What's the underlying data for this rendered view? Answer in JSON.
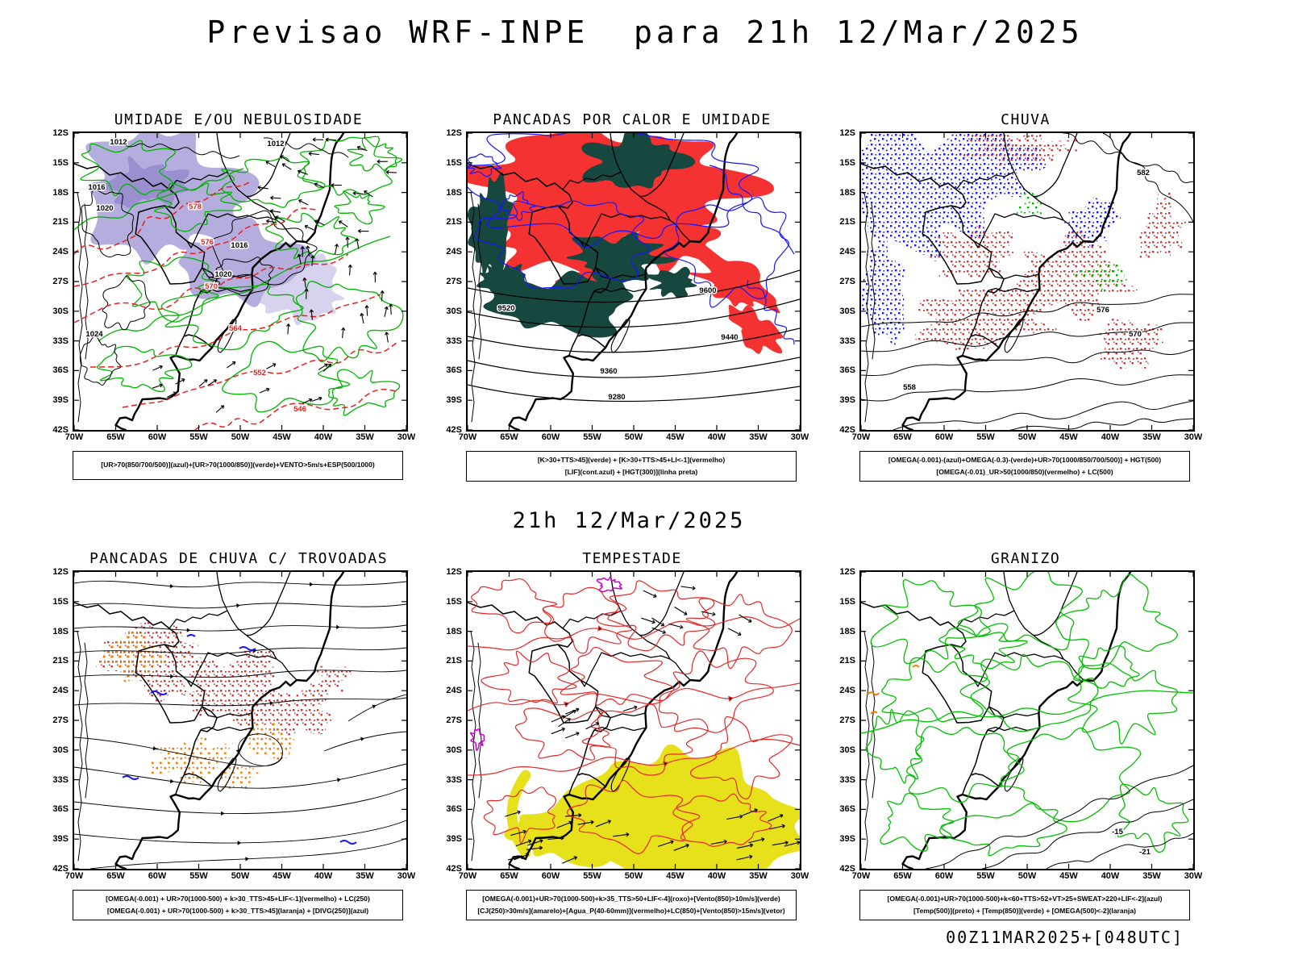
{
  "page": {
    "title": "Previsao WRF-INPE  para 21h 12/Mar/2025",
    "middle_label": "21h 12/Mar/2025",
    "bottom_label": "00Z11MAR2025+[048UTC]"
  },
  "axes": {
    "lat_ticks": [
      "12S",
      "15S",
      "18S",
      "21S",
      "24S",
      "27S",
      "30S",
      "33S",
      "36S",
      "39S",
      "42S"
    ],
    "lon_ticks": [
      "70W",
      "65W",
      "60W",
      "55W",
      "50W",
      "45W",
      "40W",
      "35W",
      "30W"
    ]
  },
  "colors": {
    "shading_purple": "#b6addf",
    "shading_purple_dark": "#9a90d0",
    "contour_green": "#00b400",
    "contour_red": "#e82020",
    "fill_red": "#f53232",
    "fill_teal": "#17483f",
    "contour_blue": "#1616ff",
    "speckle_orange": "#f08000",
    "fill_yellow": "#e7e11c",
    "contour_magenta": "#cc00cc",
    "map_line": "#000000"
  },
  "panels": [
    {
      "id": "umidade",
      "title": "UMIDADE E/OU NEBULOSIDADE",
      "legend_lines": [
        "[UR>70(850/700/500)](azul)+[UR>70(1000/850)](verde)+VENTO>5m/s+ESP(500/1000)"
      ],
      "map_labels": [
        "1012",
        "1012",
        "1016",
        "1020",
        "1016",
        "1020",
        "1024",
        "578",
        "576",
        "570",
        "564",
        "552",
        "546"
      ]
    },
    {
      "id": "pancadas-calor",
      "title": "PANCADAS POR CALOR E UMIDADE",
      "legend_lines": [
        "[K>30+TTS>45](verde) + [K>30+TTS>45+LI<-1](vermelho)",
        "[LIF](cont.azul) + [HGT(300)](linha preta)"
      ],
      "map_labels": [
        "9600",
        "9520",
        "9440",
        "9360",
        "9280"
      ]
    },
    {
      "id": "chuva",
      "title": "CHUVA",
      "legend_lines": [
        "[OMEGA(-0.001)-(azul)+OMEGA(-0.3)-(verde)+UR>70(1000/850/700/500)] + HGT(500)",
        "[OMEGA(-0.01)_UR>50(1000/850)(vermelho) + LC(500)"
      ],
      "map_labels": [
        "582",
        "576",
        "570",
        "558"
      ]
    },
    {
      "id": "trovoadas",
      "title": "PANCADAS DE CHUVA C/ TROVOADAS",
      "legend_lines": [
        "[OMEGA(-0.001) + UR>70(1000-500) + k>30_TTS>45+LIF<-1](vermelho) + LC(250)",
        "[OMEGA(-0.001) + UR>70(1000-500) + k>30_TTS>45](laranja) + [DIVG(250)](azul)"
      ],
      "map_labels": []
    },
    {
      "id": "tempestade",
      "title": "TEMPESTADE",
      "legend_lines": [
        "[OMEGA(-0.001)+UR>70(1000-500)+k>35_TTS>50+LIF<-4](roxo)+[Vento(850)>10m/s](verde)",
        "[CJ(250)>30m/s](amarelo)+[Agua_P(40-60mm)](vermelho)+LC(850)+[Vento(850)>15m/s](vetor)"
      ],
      "map_labels": []
    },
    {
      "id": "granizo",
      "title": "GRANIZO",
      "legend_lines": [
        "[OMEGA(-0.001)+UR>70(1000-500)+k<60+TTS>52+VT>25+SWEAT>220+LIF<-2](azul)",
        "[Temp(500)](preto) + [Temp(850)](verde) + [OMEGA(500)<-2](laranja)"
      ],
      "map_labels": [
        "-15",
        "-21"
      ]
    }
  ]
}
